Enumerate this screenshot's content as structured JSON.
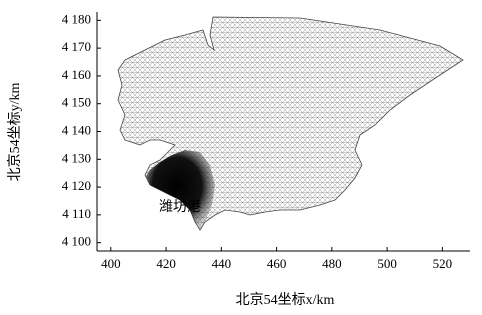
{
  "chart_data": {
    "type": "map",
    "xlabel": "北京54坐标x/km",
    "ylabel": "北京54坐标y/km",
    "annotation": "潍坊港",
    "xlim": [
      395,
      530
    ],
    "ylim": [
      4097,
      4183
    ],
    "xticks": [
      400,
      420,
      440,
      460,
      480,
      500,
      520
    ],
    "yticks": [
      {
        "value": 4100,
        "label": "4 100"
      },
      {
        "value": 4110,
        "label": "4 110"
      },
      {
        "value": 4120,
        "label": "4 120"
      },
      {
        "value": 4130,
        "label": "4 130"
      },
      {
        "value": 4140,
        "label": "4 140"
      },
      {
        "value": 4150,
        "label": "4 150"
      },
      {
        "value": 4160,
        "label": "4 160"
      },
      {
        "value": 4170,
        "label": "4 170"
      },
      {
        "value": 4180,
        "label": "4 180"
      }
    ]
  }
}
